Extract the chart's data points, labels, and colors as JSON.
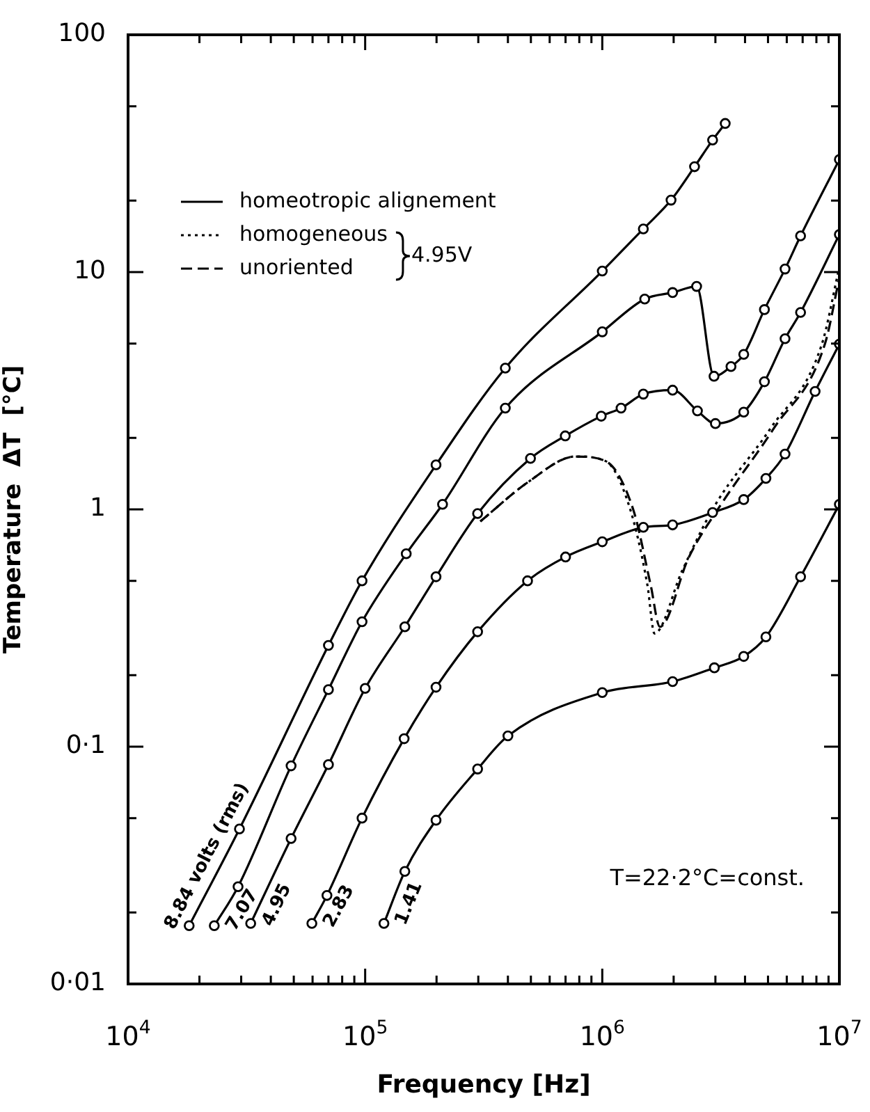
{
  "chart_data": {
    "type": "line",
    "xlabel": "Frequency [Hz]",
    "ylabel": "Temperature  ΔT  [°C]",
    "annotations": [
      "T=22·2°C=const.",
      "homeotropic alignement",
      "4.95V"
    ],
    "log": "xy",
    "grid": false,
    "legend": "top left",
    "xlim": [
      10000,
      10000000
    ],
    "ylim": [
      0.01,
      100
    ],
    "xticks": [
      {
        "value": 10000,
        "label": "10$^{4}$"
      },
      {
        "value": 20000,
        "label": null
      },
      {
        "value": 30000,
        "label": null
      },
      {
        "value": 40000,
        "label": null
      },
      {
        "value": 50000,
        "label": null
      },
      {
        "value": 60000,
        "label": null
      },
      {
        "value": 70000,
        "label": null
      },
      {
        "value": 80000,
        "label": null
      },
      {
        "value": 90000,
        "label": null
      },
      {
        "value": 100000,
        "label": "10$^{5}$"
      },
      {
        "value": 200000,
        "label": null
      },
      {
        "value": 300000,
        "label": null
      },
      {
        "value": 400000,
        "label": null
      },
      {
        "value": 500000,
        "label": null
      },
      {
        "value": 600000,
        "label": null
      },
      {
        "value": 700000,
        "label": null
      },
      {
        "value": 800000,
        "label": null
      },
      {
        "value": 900000,
        "label": null
      },
      {
        "value": 1000000,
        "label": "10$^{6}$"
      },
      {
        "value": 2000000,
        "label": null
      },
      {
        "value": 3000000,
        "label": null
      },
      {
        "value": 4000000,
        "label": null
      },
      {
        "value": 5000000,
        "label": null
      },
      {
        "value": 6000000,
        "label": null
      },
      {
        "value": 7000000,
        "label": null
      },
      {
        "value": 8000000,
        "label": null
      },
      {
        "value": 9000000,
        "label": null
      },
      {
        "value": 10000000,
        "label": "10$^{7}$"
      }
    ],
    "yticks": [
      {
        "value": 0.01,
        "label": "0·01"
      },
      {
        "value": 0.02,
        "label": null
      },
      {
        "value": 0.05,
        "label": null
      },
      {
        "value": 0.1,
        "label": "0·1"
      },
      {
        "value": 0.2,
        "label": null
      },
      {
        "value": 0.5,
        "label": null
      },
      {
        "value": 1,
        "label": "1"
      },
      {
        "value": 2,
        "label": null
      },
      {
        "value": 5,
        "label": null
      },
      {
        "value": 10,
        "label": "10"
      },
      {
        "value": 20,
        "label": null
      },
      {
        "value": 50,
        "label": null
      },
      {
        "value": 100,
        "label": "100"
      }
    ],
    "series": [
      {
        "name": "8.84 volts (rms)",
        "color": "#000000",
        "line_style": "solid",
        "marker": "circle",
        "x": [
          18100,
          29500,
          70000,
          97000,
          199000,
          390000,
          1000000,
          1490000,
          1950000,
          2450000,
          2920000,
          3300000
        ],
        "values": [
          0.0176,
          0.045,
          0.267,
          0.5,
          1.54,
          3.94,
          10.1,
          15.2,
          20.1,
          27.8,
          36,
          42.3
        ]
      },
      {
        "name": "7.07",
        "color": "#000000",
        "line_style": "solid",
        "marker": "circle",
        "x": [
          23100,
          29100,
          48700,
          70000,
          97000,
          149000,
          212000,
          390000,
          1000000,
          1510000,
          1980000,
          2500000,
          2960000,
          3490000,
          3950000,
          4830000,
          5900000,
          6860000,
          10000000
        ],
        "values": [
          0.0176,
          0.0257,
          0.083,
          0.174,
          0.336,
          0.65,
          1.05,
          2.67,
          5.6,
          7.7,
          8.2,
          8.7,
          3.64,
          4.0,
          4.5,
          6.95,
          10.3,
          14.2,
          29.8
        ]
      },
      {
        "name": "4.95",
        "color": "#000000",
        "line_style": "solid",
        "marker": "circle",
        "x": [
          32900,
          48700,
          70000,
          100000,
          147000,
          199000,
          298000,
          498000,
          698000,
          990000,
          1200000,
          1490000,
          1980000,
          2520000,
          3000000,
          3950000,
          4830000,
          5900000,
          6860000,
          10000000
        ],
        "values": [
          0.018,
          0.041,
          0.084,
          0.176,
          0.32,
          0.52,
          0.96,
          1.64,
          2.04,
          2.47,
          2.67,
          3.06,
          3.18,
          2.6,
          2.3,
          2.57,
          3.45,
          5.24,
          6.76,
          14.4
        ]
      },
      {
        "name": "2.83",
        "color": "#000000",
        "line_style": "solid",
        "marker": "circle",
        "x": [
          59600,
          69000,
          97000,
          146000,
          199000,
          298000,
          484000,
          700000,
          1000000,
          1490000,
          1980000,
          2920000,
          3950000,
          4900000,
          5900000,
          7900000,
          10000000
        ],
        "values": [
          0.018,
          0.0236,
          0.05,
          0.108,
          0.178,
          0.305,
          0.5,
          0.63,
          0.73,
          0.84,
          0.86,
          0.97,
          1.1,
          1.35,
          1.71,
          3.14,
          4.97
        ]
      },
      {
        "name": "1.41",
        "color": "#000000",
        "line_style": "solid",
        "marker": "circle",
        "x": [
          120000,
          147000,
          199000,
          298000,
          400000,
          1000000,
          1980000,
          2970000,
          3950000,
          4900000,
          6860000,
          10000000
        ],
        "values": [
          0.018,
          0.0298,
          0.049,
          0.0805,
          0.111,
          0.169,
          0.188,
          0.215,
          0.24,
          0.29,
          0.52,
          1.05
        ]
      },
      {
        "name": "homogeneous",
        "color": "#000000",
        "line_style": "dotted",
        "marker": "none",
        "x": [
          306000,
          490000,
          770000,
          1030000,
          1300000,
          1550000,
          1660000,
          2170000,
          2970000,
          5100000,
          8400000,
          10000000
        ],
        "values": [
          0.89,
          1.31,
          1.67,
          1.6,
          1.03,
          0.48,
          0.3,
          0.55,
          1.03,
          2.18,
          4.9,
          10.5
        ]
      },
      {
        "name": "unoriented",
        "color": "#000000",
        "line_style": "dashed",
        "marker": "none",
        "x": [
          306000,
          490000,
          770000,
          1030000,
          1350000,
          1600000,
          1750000,
          2320000,
          3170000,
          5300000,
          8700000,
          10000000
        ],
        "values": [
          0.89,
          1.31,
          1.67,
          1.6,
          1.0,
          0.48,
          0.32,
          0.63,
          1.05,
          2.2,
          5.0,
          9.5
        ]
      }
    ]
  }
}
